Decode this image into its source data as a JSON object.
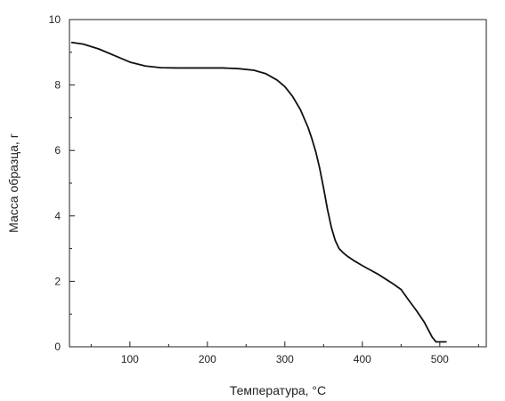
{
  "chart_data": {
    "type": "line",
    "xlabel": "Температура, °C",
    "ylabel": "Масса образца, г",
    "xlim": [
      22,
      560
    ],
    "ylim": [
      0,
      10
    ],
    "x_ticks": [
      100,
      200,
      300,
      400,
      500
    ],
    "x_tick_labels": [
      "100",
      "200",
      "300",
      "400",
      "500"
    ],
    "y_ticks": [
      0,
      2,
      4,
      6,
      8,
      10
    ],
    "y_tick_labels": [
      "0",
      "2",
      "4",
      "6",
      "8",
      "10"
    ],
    "grid": false,
    "legend": "none",
    "series": [
      {
        "line_color": "#111111",
        "x": [
          25,
          40,
          60,
          80,
          100,
          120,
          140,
          160,
          180,
          200,
          220,
          240,
          260,
          275,
          290,
          300,
          310,
          320,
          330,
          335,
          340,
          345,
          350,
          355,
          360,
          365,
          370,
          375,
          380,
          390,
          400,
          410,
          420,
          430,
          440,
          450,
          460,
          470,
          480,
          490,
          495,
          500,
          508
        ],
        "y": [
          9.3,
          9.25,
          9.1,
          8.9,
          8.7,
          8.58,
          8.53,
          8.52,
          8.52,
          8.52,
          8.52,
          8.5,
          8.45,
          8.35,
          8.15,
          7.95,
          7.65,
          7.25,
          6.7,
          6.35,
          5.95,
          5.45,
          4.85,
          4.2,
          3.65,
          3.25,
          3.0,
          2.88,
          2.78,
          2.62,
          2.48,
          2.35,
          2.22,
          2.07,
          1.92,
          1.75,
          1.42,
          1.1,
          0.75,
          0.3,
          0.15,
          0.15,
          0.15
        ]
      }
    ]
  }
}
